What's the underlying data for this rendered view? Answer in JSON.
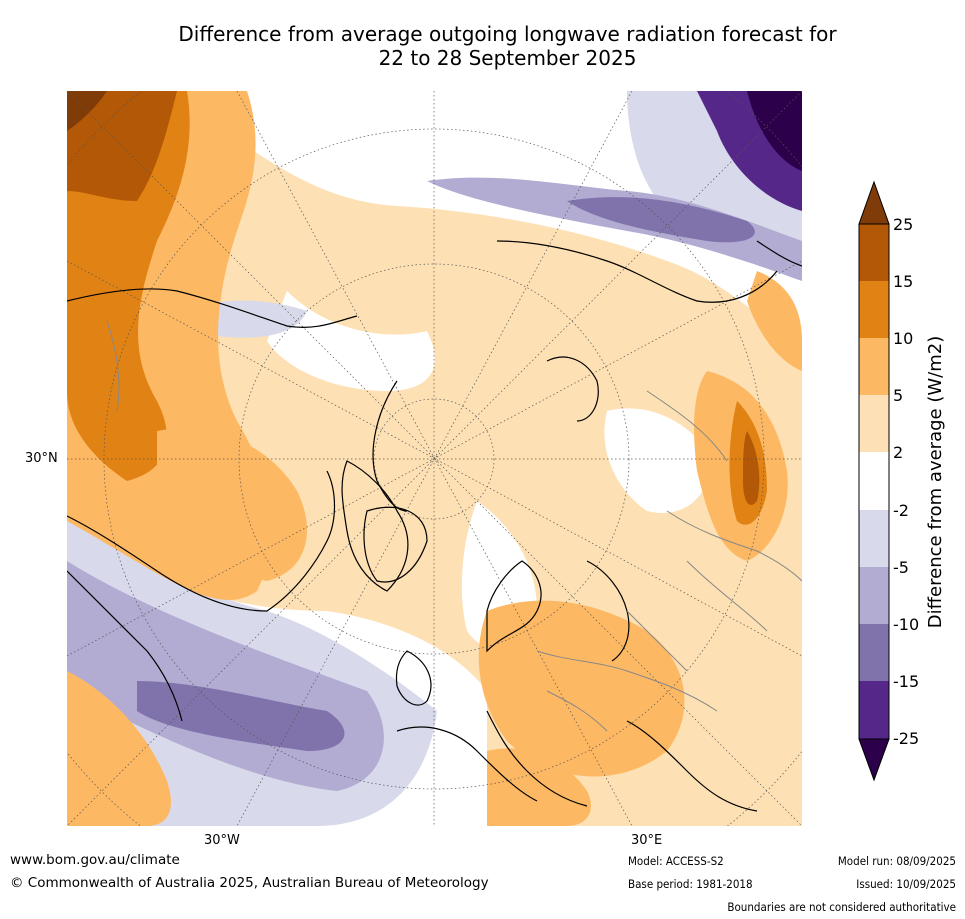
{
  "title_line1": "Difference from average outgoing longwave radiation forecast for",
  "title_line2": "22 to 28 September 2025",
  "axes": {
    "lat_label": "30°N",
    "lon_label_west": "30°W",
    "lon_label_east": "30°E"
  },
  "colorbar": {
    "label": "Difference from average (W/m2)",
    "ticks": [
      "25",
      "15",
      "10",
      "5",
      "2",
      "-2",
      "-5",
      "-10",
      "-15",
      "-25"
    ],
    "colors": {
      "over": "#7f3b08",
      "b15_25": "#b35806",
      "b10_15": "#e08214",
      "b5_10": "#fdb863",
      "b2_5": "#fee0b6",
      "neutral": "#ffffff",
      "n2_5": "#d8daeb",
      "n5_10": "#b2abd2",
      "n10_15": "#8073ac",
      "n15_25": "#542788",
      "under": "#2d004b"
    }
  },
  "footer": {
    "website": "www.bom.gov.au/climate",
    "copyright": "© Commonwealth of Australia 2025, Australian Bureau of Meteorology",
    "model": "Model: ACCESS-S2",
    "base_period": "Base period: 1981-2018",
    "model_run": "Model run: 08/09/2025",
    "issued": "Issued: 10/09/2025",
    "disclaimer": "Boundaries are not considered authoritative"
  }
}
